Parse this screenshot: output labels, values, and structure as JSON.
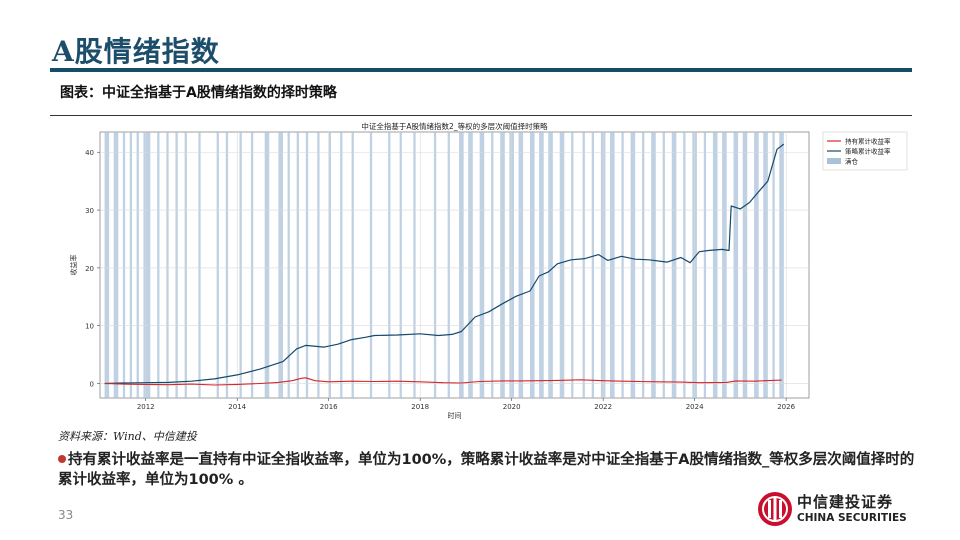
{
  "slide": {
    "title": "A股情绪指数",
    "caption": "图表：中证全指基于A股情绪指数的择时策略",
    "source": "资料来源：Wind、中信建投",
    "bullet": "持有累计收益率是一直持有中证全指收益率，单位为100%，策略累计收益率是对中证全指基于A股情绪指数_等权多层次阈值择时的累计收益率，单位为100% 。",
    "page_number": "33"
  },
  "logo": {
    "name_cn": "中信建投证券",
    "name_en": "CHINA SECURITIES"
  },
  "colors": {
    "title": "#1c4e6b",
    "rule": "#134d66",
    "hold_line": "#d62728",
    "strategy_line": "#15496b",
    "shading": "#a9c2d8",
    "logo": "#c8102e"
  },
  "chart_data": {
    "type": "line",
    "title": "中证全指基于A股情绪指数2_等权的多层次阈值择时策略",
    "xlabel": "时间",
    "ylabel": "收益率",
    "xlim": [
      2011.0,
      2026.5
    ],
    "ylim": [
      -2.5,
      43.5
    ],
    "xticks": [
      2012,
      2014,
      2016,
      2018,
      2020,
      2022,
      2024,
      2026
    ],
    "yticks": [
      0,
      10,
      20,
      30,
      40
    ],
    "grid": true,
    "legend": "top-right",
    "series": [
      {
        "name": "持有累计收益率",
        "x": [
          2011.1,
          2011.5,
          2012.0,
          2012.5,
          2013.0,
          2013.5,
          2014.0,
          2014.5,
          2014.9,
          2015.2,
          2015.4,
          2015.5,
          2015.7,
          2016.0,
          2016.5,
          2017.0,
          2017.5,
          2018.0,
          2018.5,
          2018.9,
          2019.3,
          2019.8,
          2020.2,
          2020.6,
          2021.0,
          2021.5,
          2022.0,
          2022.4,
          2022.8,
          2023.2,
          2023.7,
          2024.1,
          2024.7,
          2024.9,
          2025.3,
          2025.7,
          2025.9
        ],
        "values": [
          0.0,
          -0.1,
          -0.15,
          -0.2,
          -0.1,
          -0.25,
          -0.15,
          0.0,
          0.2,
          0.5,
          0.9,
          1.0,
          0.5,
          0.3,
          0.4,
          0.35,
          0.4,
          0.3,
          0.15,
          0.1,
          0.35,
          0.45,
          0.45,
          0.5,
          0.55,
          0.65,
          0.5,
          0.4,
          0.35,
          0.3,
          0.25,
          0.15,
          0.2,
          0.45,
          0.4,
          0.55,
          0.6
        ]
      },
      {
        "name": "策略累计收益率",
        "x": [
          2011.1,
          2011.5,
          2012.0,
          2012.5,
          2013.0,
          2013.5,
          2014.0,
          2014.5,
          2015.0,
          2015.3,
          2015.5,
          2015.9,
          2016.2,
          2016.5,
          2016.8,
          2017.0,
          2017.5,
          2018.0,
          2018.4,
          2018.7,
          2018.9,
          2019.2,
          2019.5,
          2019.8,
          2020.1,
          2020.4,
          2020.6,
          2020.8,
          2021.0,
          2021.3,
          2021.6,
          2021.9,
          2022.1,
          2022.4,
          2022.7,
          2023.0,
          2023.4,
          2023.7,
          2023.9,
          2024.1,
          2024.3,
          2024.6,
          2024.75,
          2024.8,
          2025.0,
          2025.2,
          2025.4,
          2025.6,
          2025.8,
          2025.95
        ],
        "values": [
          0.0,
          0.1,
          0.15,
          0.2,
          0.4,
          0.8,
          1.5,
          2.5,
          3.8,
          6.0,
          6.6,
          6.3,
          6.8,
          7.6,
          8.0,
          8.3,
          8.4,
          8.6,
          8.3,
          8.5,
          9.0,
          11.5,
          12.4,
          13.8,
          15.1,
          16.0,
          18.6,
          19.3,
          20.7,
          21.4,
          21.6,
          22.3,
          21.3,
          22.0,
          21.5,
          21.4,
          21.0,
          21.8,
          20.9,
          22.8,
          23.0,
          23.2,
          23.0,
          30.7,
          30.2,
          31.3,
          33.2,
          35.0,
          40.5,
          41.4
        ]
      },
      {
        "name": "满仓"
      }
    ],
    "shaded_periods": [
      [
        2011.1,
        2011.2
      ],
      [
        2011.3,
        2011.4
      ],
      [
        2011.5,
        2011.55
      ],
      [
        2011.65,
        2011.7
      ],
      [
        2011.8,
        2011.85
      ],
      [
        2011.95,
        2012.1
      ],
      [
        2012.25,
        2012.3
      ],
      [
        2012.45,
        2012.5
      ],
      [
        2012.65,
        2012.7
      ],
      [
        2012.85,
        2012.9
      ],
      [
        2013.15,
        2013.2
      ],
      [
        2013.55,
        2013.6
      ],
      [
        2013.75,
        2013.8
      ],
      [
        2014.05,
        2014.1
      ],
      [
        2014.3,
        2014.35
      ],
      [
        2014.6,
        2014.7
      ],
      [
        2014.9,
        2015.0
      ],
      [
        2015.1,
        2015.15
      ],
      [
        2015.3,
        2015.35
      ],
      [
        2015.5,
        2015.55
      ],
      [
        2015.75,
        2015.8
      ],
      [
        2016.0,
        2016.05
      ],
      [
        2016.25,
        2016.3
      ],
      [
        2016.5,
        2016.55
      ],
      [
        2016.9,
        2016.95
      ],
      [
        2017.3,
        2017.35
      ],
      [
        2017.55,
        2017.6
      ],
      [
        2017.85,
        2017.9
      ],
      [
        2018.3,
        2018.35
      ],
      [
        2018.6,
        2018.65
      ],
      [
        2018.85,
        2018.95
      ],
      [
        2019.05,
        2019.15
      ],
      [
        2019.3,
        2019.4
      ],
      [
        2019.55,
        2019.6
      ],
      [
        2019.75,
        2019.85
      ],
      [
        2019.95,
        2020.05
      ],
      [
        2020.15,
        2020.25
      ],
      [
        2020.4,
        2020.5
      ],
      [
        2020.6,
        2020.7
      ],
      [
        2020.8,
        2020.9
      ],
      [
        2021.05,
        2021.15
      ],
      [
        2021.3,
        2021.35
      ],
      [
        2021.55,
        2021.6
      ],
      [
        2021.75,
        2021.8
      ],
      [
        2021.95,
        2022.05
      ],
      [
        2022.15,
        2022.25
      ],
      [
        2022.4,
        2022.45
      ],
      [
        2022.6,
        2022.7
      ],
      [
        2022.85,
        2022.9
      ],
      [
        2023.05,
        2023.15
      ],
      [
        2023.3,
        2023.35
      ],
      [
        2023.5,
        2023.6
      ],
      [
        2023.75,
        2023.8
      ],
      [
        2023.95,
        2024.05
      ],
      [
        2024.2,
        2024.25
      ],
      [
        2024.4,
        2024.5
      ],
      [
        2024.6,
        2024.7
      ],
      [
        2024.85,
        2024.95
      ],
      [
        2025.05,
        2025.15
      ],
      [
        2025.3,
        2025.4
      ],
      [
        2025.5,
        2025.6
      ],
      [
        2025.7,
        2025.75
      ],
      [
        2025.85,
        2025.95
      ]
    ]
  }
}
